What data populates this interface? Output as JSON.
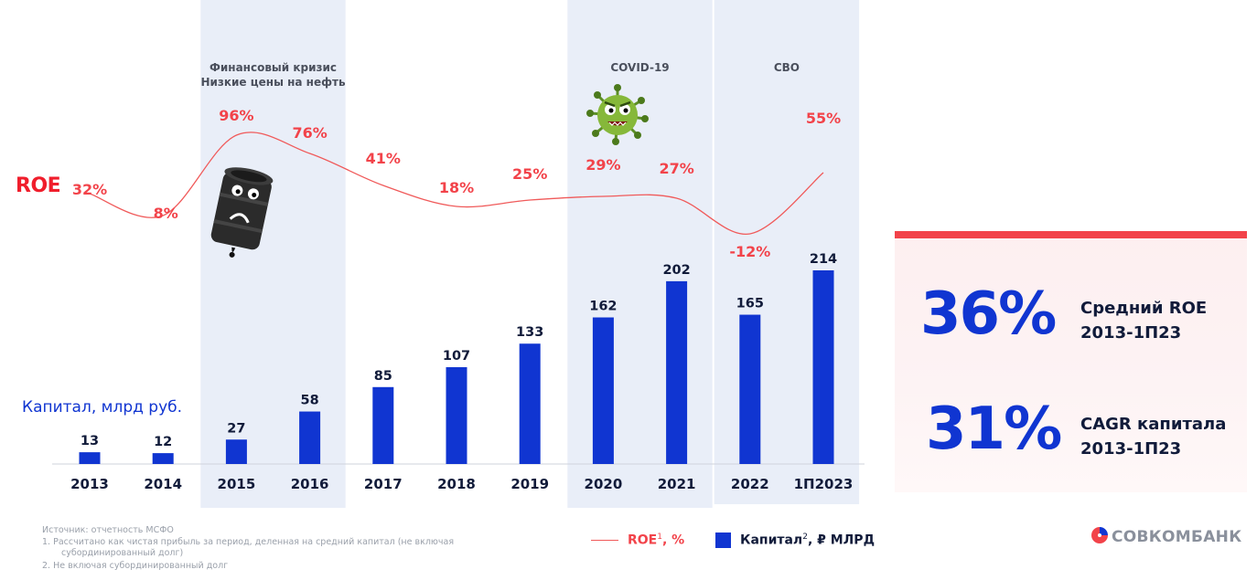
{
  "labels": {
    "roe_title": "ROE",
    "capital_title": "Капитал, млрд руб."
  },
  "chart_data": {
    "type": "bar+line",
    "categories": [
      "2013",
      "2014",
      "2015",
      "2016",
      "2017",
      "2018",
      "2019",
      "2020",
      "2021",
      "2022",
      "1П2023"
    ],
    "series": [
      {
        "name": "Капитал, ₽ млрд",
        "type": "bar",
        "values": [
          13,
          12,
          27,
          58,
          85,
          107,
          133,
          162,
          202,
          165,
          214
        ]
      },
      {
        "name": "ROE, %",
        "type": "line",
        "values": [
          32,
          8,
          96,
          76,
          41,
          18,
          25,
          29,
          27,
          -12,
          55
        ],
        "labels": [
          "32%",
          "8%",
          "96%",
          "76%",
          "41%",
          "18%",
          "25%",
          "29%",
          "27%",
          "-12%",
          "55%"
        ]
      }
    ],
    "highlight_bands": [
      {
        "from": "2015",
        "to": "2016",
        "lines": [
          "Финансовый кризис",
          "Низкие цены на нефть"
        ]
      },
      {
        "from": "2020",
        "to": "2021",
        "lines": [
          "COVID-19"
        ]
      },
      {
        "from": "2022",
        "to": "1П2023",
        "lines": [
          "СВО"
        ]
      }
    ],
    "colors": {
      "bar": "#1035d1",
      "line": "#f05a5a",
      "line_label": "#f2434a",
      "band": "#e9eef8"
    }
  },
  "kpis": [
    {
      "value": "36%",
      "line1": "Средний ROE",
      "line2": "2013-1П23"
    },
    {
      "value": "31%",
      "line1": "CAGR капитала",
      "line2": "2013-1П23"
    }
  ],
  "footnotes": {
    "source": "Источник: отчетность МСФО",
    "note1_line1": "1.   Рассчитано как чистая прибыль за период, деленная на средний капитал (не включая",
    "note1_line2": "субординированный долг)",
    "note2": "2.   Не включая субординированный долг"
  },
  "legend": {
    "roe_label": "ROE",
    "roe_sup": "1",
    "roe_unit": ", %",
    "cap_label": "Капитал",
    "cap_sup": "2",
    "cap_unit": ", ₽ МЛРД"
  },
  "logo": {
    "text": "СОВКОМБАНК"
  }
}
